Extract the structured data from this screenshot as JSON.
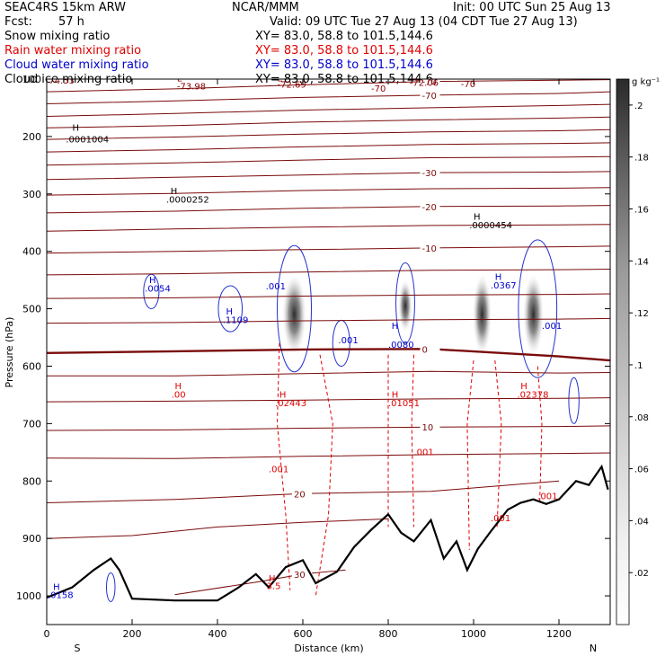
{
  "header": {
    "model": "SEAC4RS 15km ARW",
    "center": "NCAR/MMM",
    "init": "Init: 00 UTC Sun 25 Aug 13",
    "fcst_label": "Fcst:",
    "fcst_value": "57 h",
    "valid": "Valid: 09 UTC Tue 27 Aug 13 (04 CDT Tue 27 Aug 13)"
  },
  "fields": [
    {
      "name": "Snow mixing ratio",
      "xy": "XY=  83.0, 58.8 to 101.5,144.6",
      "color": "#000000"
    },
    {
      "name": "Rain water mixing ratio",
      "xy": "XY=  83.0, 58.8 to 101.5,144.6",
      "color": "#e00000"
    },
    {
      "name": "Cloud water mixing ratio",
      "xy": "XY=  83.0, 58.8 to 101.5,144.6",
      "color": "#0000cc"
    },
    {
      "name": "Cloud ice mixing ratio",
      "xy": "XY=  83.0, 58.8 to 101.5,144.6",
      "color": "#000000"
    }
  ],
  "colorbar": {
    "unit": "g kg⁻¹",
    "ticks": [
      ".02",
      ".04",
      ".06",
      ".08",
      ".1",
      ".12",
      ".14",
      ".16",
      ".18",
      ".2"
    ]
  },
  "chart_data": {
    "type": "cross-section",
    "xlabel": "Distance (km)",
    "ylabel": "Pressure (hPa)",
    "xlim": [
      0,
      1320
    ],
    "ylim": [
      1050,
      100
    ],
    "x_ticks": [
      0,
      200,
      400,
      600,
      800,
      1000,
      1200
    ],
    "y_ticks": [
      100,
      200,
      300,
      400,
      500,
      600,
      700,
      800,
      900,
      1000
    ],
    "x_end_labels": {
      "left": "S",
      "right": "N"
    },
    "terrain_pressure": [
      [
        0,
        1003
      ],
      [
        60,
        985
      ],
      [
        110,
        955
      ],
      [
        150,
        935
      ],
      [
        170,
        955
      ],
      [
        200,
        1005
      ],
      [
        300,
        1008
      ],
      [
        400,
        1008
      ],
      [
        450,
        985
      ],
      [
        490,
        962
      ],
      [
        520,
        985
      ],
      [
        560,
        950
      ],
      [
        600,
        938
      ],
      [
        630,
        978
      ],
      [
        680,
        958
      ],
      [
        720,
        915
      ],
      [
        760,
        885
      ],
      [
        800,
        858
      ],
      [
        830,
        890
      ],
      [
        860,
        905
      ],
      [
        900,
        868
      ],
      [
        930,
        935
      ],
      [
        960,
        905
      ],
      [
        985,
        955
      ],
      [
        1010,
        918
      ],
      [
        1040,
        888
      ],
      [
        1080,
        850
      ],
      [
        1110,
        838
      ],
      [
        1140,
        832
      ],
      [
        1170,
        840
      ],
      [
        1200,
        832
      ],
      [
        1240,
        800
      ],
      [
        1270,
        807
      ],
      [
        1300,
        775
      ],
      [
        1315,
        815
      ]
    ],
    "temperature_contours": [
      {
        "label": "-70",
        "p": [
          [
            0,
            143
          ],
          [
            300,
            138
          ],
          [
            600,
            132
          ],
          [
            900,
            128
          ],
          [
            1200,
            125
          ],
          [
            1320,
            122
          ]
        ]
      },
      {
        "label": "-70",
        "p": [
          [
            0,
            122
          ],
          [
            300,
            117
          ],
          [
            600,
            110
          ],
          [
            900,
            104
          ],
          [
            1200,
            102
          ],
          [
            1320,
            101
          ]
        ]
      },
      {
        "label": "",
        "p": [
          [
            0,
            165
          ],
          [
            300,
            160
          ],
          [
            600,
            154
          ],
          [
            900,
            150
          ],
          [
            1200,
            146
          ],
          [
            1320,
            144
          ]
        ]
      },
      {
        "label": "",
        "p": [
          [
            0,
            185
          ],
          [
            300,
            181
          ],
          [
            600,
            175
          ],
          [
            900,
            171
          ],
          [
            1200,
            168
          ],
          [
            1320,
            166
          ]
        ]
      },
      {
        "label": "",
        "p": [
          [
            0,
            205
          ],
          [
            300,
            201
          ],
          [
            600,
            196
          ],
          [
            900,
            192
          ],
          [
            1200,
            190
          ],
          [
            1320,
            188
          ]
        ]
      },
      {
        "label": "",
        "p": [
          [
            0,
            227
          ],
          [
            300,
            223
          ],
          [
            600,
            218
          ],
          [
            900,
            214
          ],
          [
            1200,
            212
          ],
          [
            1320,
            211
          ]
        ]
      },
      {
        "label": "",
        "p": [
          [
            0,
            250
          ],
          [
            300,
            246
          ],
          [
            600,
            241
          ],
          [
            900,
            237
          ],
          [
            1200,
            236
          ],
          [
            1320,
            235
          ]
        ]
      },
      {
        "label": "-30",
        "p": [
          [
            0,
            275
          ],
          [
            300,
            271
          ],
          [
            600,
            267
          ],
          [
            900,
            263
          ],
          [
            1200,
            262
          ],
          [
            1320,
            261
          ]
        ]
      },
      {
        "label": "",
        "p": [
          [
            0,
            302
          ],
          [
            300,
            299
          ],
          [
            600,
            294
          ],
          [
            900,
            291
          ],
          [
            1200,
            290
          ],
          [
            1320,
            289
          ]
        ]
      },
      {
        "label": "-20",
        "p": [
          [
            0,
            333
          ],
          [
            300,
            330
          ],
          [
            600,
            325
          ],
          [
            900,
            322
          ],
          [
            1200,
            321
          ],
          [
            1320,
            320
          ]
        ]
      },
      {
        "label": "",
        "p": [
          [
            0,
            365
          ],
          [
            300,
            361
          ],
          [
            600,
            358
          ],
          [
            900,
            355
          ],
          [
            1200,
            354
          ],
          [
            1320,
            353
          ]
        ]
      },
      {
        "label": "-10",
        "p": [
          [
            0,
            403
          ],
          [
            300,
            400
          ],
          [
            600,
            397
          ],
          [
            900,
            394
          ],
          [
            1200,
            392
          ],
          [
            1320,
            391
          ]
        ]
      },
      {
        "label": "",
        "p": [
          [
            0,
            441
          ],
          [
            300,
            439
          ],
          [
            600,
            436
          ],
          [
            900,
            433
          ],
          [
            1200,
            432
          ],
          [
            1320,
            431
          ]
        ]
      },
      {
        "label": "",
        "p": [
          [
            0,
            482
          ],
          [
            300,
            481
          ],
          [
            600,
            478
          ],
          [
            900,
            476
          ],
          [
            1200,
            475
          ],
          [
            1320,
            474
          ]
        ]
      },
      {
        "label": "",
        "p": [
          [
            0,
            525
          ],
          [
            300,
            524
          ],
          [
            600,
            521
          ],
          [
            900,
            519
          ],
          [
            1200,
            518
          ],
          [
            1320,
            517
          ]
        ]
      },
      {
        "label": "0",
        "p": [
          [
            0,
            577
          ],
          [
            300,
            574
          ],
          [
            600,
            571
          ],
          [
            900,
            570
          ],
          [
            1200,
            583
          ],
          [
            1320,
            590
          ]
        ],
        "bold": true
      },
      {
        "label": "",
        "p": [
          [
            0,
            617
          ],
          [
            300,
            617
          ],
          [
            600,
            613
          ],
          [
            900,
            609
          ],
          [
            1200,
            612
          ],
          [
            1320,
            611
          ]
        ]
      },
      {
        "label": "",
        "p": [
          [
            0,
            662
          ],
          [
            300,
            661
          ],
          [
            600,
            659
          ],
          [
            900,
            657
          ],
          [
            1200,
            656
          ],
          [
            1320,
            655
          ]
        ]
      },
      {
        "label": "10",
        "p": [
          [
            0,
            712
          ],
          [
            300,
            711
          ],
          [
            600,
            708
          ],
          [
            900,
            706
          ],
          [
            1200,
            705
          ],
          [
            1320,
            704
          ]
        ]
      },
      {
        "label": "",
        "p": [
          [
            0,
            760
          ],
          [
            300,
            761
          ],
          [
            600,
            757
          ],
          [
            900,
            754
          ],
          [
            1200,
            752
          ],
          [
            1320,
            751
          ]
        ]
      },
      {
        "label": "20",
        "p": [
          [
            0,
            838
          ],
          [
            300,
            832
          ],
          [
            600,
            822
          ],
          [
            900,
            818
          ],
          [
            1200,
            800
          ]
        ]
      },
      {
        "label": "",
        "p": [
          [
            0,
            900
          ],
          [
            200,
            895
          ],
          [
            400,
            880
          ],
          [
            600,
            872
          ],
          [
            800,
            866
          ]
        ]
      },
      {
        "label": "30",
        "p": [
          [
            300,
            998
          ],
          [
            500,
            975
          ],
          [
            600,
            962
          ],
          [
            700,
            955
          ]
        ]
      }
    ],
    "cloud_ice_cores": [
      {
        "x": 580,
        "p": 510,
        "rx_km": 28,
        "ry_hpa": 70
      },
      {
        "x": 840,
        "p": 495,
        "rx_km": 16,
        "ry_hpa": 45
      },
      {
        "x": 1020,
        "p": 510,
        "rx_km": 22,
        "ry_hpa": 70
      },
      {
        "x": 1140,
        "p": 510,
        "rx_km": 24,
        "ry_hpa": 70
      }
    ],
    "annotations": [
      {
        "text": "H",
        "x": 60,
        "p": 190,
        "color": "#000"
      },
      {
        "text": ".0001004",
        "x": 45,
        "p": 210,
        "color": "#000"
      },
      {
        "text": "H",
        "x": 290,
        "p": 300,
        "color": "#000"
      },
      {
        "text": ".0000252",
        "x": 280,
        "p": 315,
        "color": "#000"
      },
      {
        "text": "H",
        "x": 1000,
        "p": 345,
        "color": "#000"
      },
      {
        "text": ".0000454",
        "x": 990,
        "p": 360,
        "color": "#000"
      },
      {
        "text": "H",
        "x": 240,
        "p": 455,
        "color": "#0000cc"
      },
      {
        "text": ".0054",
        "x": 230,
        "p": 470,
        "color": "#0000cc"
      },
      {
        "text": "H",
        "x": 420,
        "p": 510,
        "color": "#0000cc"
      },
      {
        "text": ".1109",
        "x": 412,
        "p": 525,
        "color": "#0000cc"
      },
      {
        "text": ".001",
        "x": 513,
        "p": 466,
        "color": "#0000cc"
      },
      {
        "text": ".001",
        "x": 683,
        "p": 560,
        "color": "#0000cc"
      },
      {
        "text": "H",
        "x": 808,
        "p": 535,
        "color": "#0000cc"
      },
      {
        "text": ".0080",
        "x": 800,
        "p": 568,
        "color": "#0000cc"
      },
      {
        "text": "H",
        "x": 1050,
        "p": 450,
        "color": "#0000cc"
      },
      {
        "text": ".0367",
        "x": 1040,
        "p": 465,
        "color": "#0000cc"
      },
      {
        "text": ".001",
        "x": 1160,
        "p": 535,
        "color": "#0000cc"
      },
      {
        "text": "H",
        "x": 300,
        "p": 640,
        "color": "#e00000"
      },
      {
        "text": ".00",
        "x": 292,
        "p": 655,
        "color": "#e00000"
      },
      {
        "text": "H",
        "x": 545,
        "p": 655,
        "color": "#e00000"
      },
      {
        "text": ".02443",
        "x": 535,
        "p": 670,
        "color": "#e00000"
      },
      {
        "text": "H",
        "x": 808,
        "p": 655,
        "color": "#e00000"
      },
      {
        "text": ".01051",
        "x": 800,
        "p": 670,
        "color": "#e00000"
      },
      {
        "text": "H",
        "x": 1110,
        "p": 640,
        "color": "#e00000"
      },
      {
        "text": ".02378",
        "x": 1102,
        "p": 655,
        "color": "#e00000"
      },
      {
        "text": ".001",
        "x": 520,
        "p": 785,
        "color": "#e00000"
      },
      {
        "text": ".001",
        "x": 860,
        "p": 755,
        "color": "#e00000"
      },
      {
        "text": ".001",
        "x": 1040,
        "p": 870,
        "color": "#e00000"
      },
      {
        "text": ".001",
        "x": 1150,
        "p": 832,
        "color": "#e00000"
      },
      {
        "text": "74.53",
        "x": 5,
        "p": 108,
        "color": "#8b0000"
      },
      {
        "text": "L",
        "x": 305,
        "p": 104,
        "color": "#8b0000"
      },
      {
        "text": "-73.98",
        "x": 305,
        "p": 118,
        "color": "#8b0000"
      },
      {
        "text": "L",
        "x": 540,
        "p": 104,
        "color": "#8b0000"
      },
      {
        "text": "-72.69",
        "x": 540,
        "p": 115,
        "color": "#8b0000"
      },
      {
        "text": "-72.06",
        "x": 850,
        "p": 112,
        "color": "#8b0000"
      },
      {
        "text": "-70",
        "x": 970,
        "p": 114,
        "color": "#8b0000"
      },
      {
        "text": "-70",
        "x": 760,
        "p": 122,
        "color": "#8b0000"
      },
      {
        "text": "H",
        "x": 520,
        "p": 975,
        "color": "#e00000"
      },
      {
        "text": "3.5",
        "x": 515,
        "p": 988,
        "color": "#e00000"
      },
      {
        "text": "H",
        "x": 15,
        "p": 990,
        "color": "#0000cc"
      },
      {
        "text": ".0158",
        "x": 2,
        "p": 1004,
        "color": "#0000cc"
      }
    ]
  }
}
